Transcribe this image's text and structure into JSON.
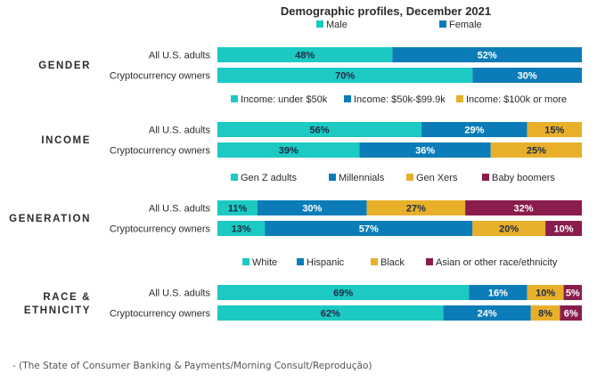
{
  "colors": {
    "teal": "#1cc9c3",
    "blue": "#0b7cb8",
    "gold": "#e8b02a",
    "maroon": "#8a1d4e",
    "text": "#2b2b2b"
  },
  "source_caption": "- (The State of Consumer Banking & Payments/Morning Consult/Reprodução)",
  "chart_data": {
    "type": "bar",
    "orientation": "horizontal",
    "stacked": true,
    "percent_stacked": true,
    "title": "Demographic profiles, December 2021",
    "grid": false,
    "legend_placement": "above each group",
    "row_labels": [
      "All U.S. adults",
      "Cryptocurrency owners"
    ],
    "groups": [
      {
        "label": "GENDER",
        "series": [
          {
            "name": "Male",
            "color": "#1cc9c3",
            "values": [
              48,
              70
            ],
            "labels": [
              "48%",
              "70%"
            ]
          },
          {
            "name": "Female",
            "color": "#0b7cb8",
            "values": [
              52,
              30
            ],
            "labels": [
              "52%",
              "30%"
            ]
          }
        ]
      },
      {
        "label": "INCOME",
        "series": [
          {
            "name": "Income: under $50k",
            "color": "#1cc9c3",
            "values": [
              56,
              39
            ],
            "labels": [
              "56%",
              "39%"
            ]
          },
          {
            "name": "Income: $50k-$99.9k",
            "color": "#0b7cb8",
            "values": [
              29,
              36
            ],
            "labels": [
              "29%",
              "36%"
            ]
          },
          {
            "name": "Income: $100k or more",
            "color": "#e8b02a",
            "values": [
              15,
              25
            ],
            "labels": [
              "15%",
              "25%"
            ]
          }
        ]
      },
      {
        "label": "GENERATION",
        "series": [
          {
            "name": "Gen Z adults",
            "color": "#1cc9c3",
            "values": [
              11,
              13
            ],
            "labels": [
              "11%",
              "13%"
            ]
          },
          {
            "name": "Millennials",
            "color": "#0b7cb8",
            "values": [
              30,
              57
            ],
            "labels": [
              "30%",
              "57%"
            ]
          },
          {
            "name": "Gen Xers",
            "color": "#e8b02a",
            "values": [
              27,
              20
            ],
            "labels": [
              "27%",
              "20%"
            ]
          },
          {
            "name": "Baby boomers",
            "color": "#8a1d4e",
            "values": [
              32,
              10
            ],
            "labels": [
              "32%",
              "10%"
            ]
          }
        ]
      },
      {
        "label": "RACE & ETHNICITY",
        "label_lines": [
          "RACE &",
          "ETHNICITY"
        ],
        "series": [
          {
            "name": "White",
            "color": "#1cc9c3",
            "values": [
              69,
              62
            ],
            "labels": [
              "69%",
              "62%"
            ]
          },
          {
            "name": "Hispanic",
            "color": "#0b7cb8",
            "values": [
              16,
              24
            ],
            "labels": [
              "16%",
              "24%"
            ]
          },
          {
            "name": "Black",
            "color": "#e8b02a",
            "values": [
              10,
              8
            ],
            "labels": [
              "10%",
              "8%"
            ]
          },
          {
            "name": "Asian or other race/ethnicity",
            "color": "#8a1d4e",
            "values": [
              5,
              6
            ],
            "labels": [
              "5%",
              "6%"
            ]
          }
        ]
      }
    ]
  }
}
